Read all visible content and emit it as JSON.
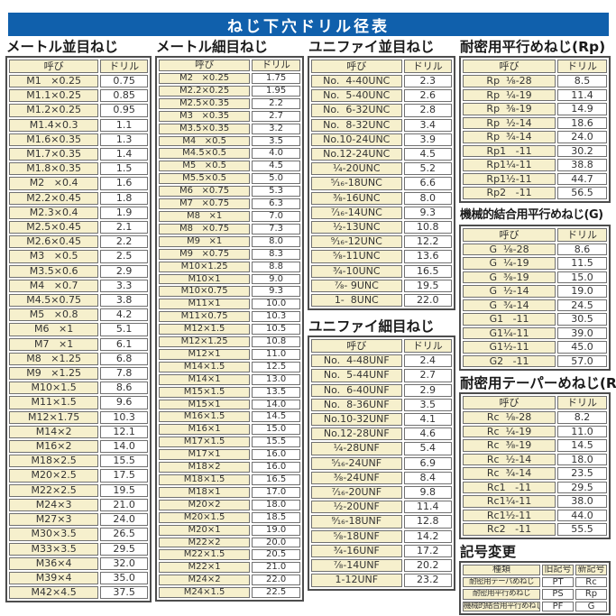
{
  "title": "ねじ下穴ドリル径表",
  "colors": {
    "title_bar_bg": "#1060ac",
    "title_text": "#ffffff",
    "name_cell_bg": "#f6f0cd",
    "value_cell_bg": "#ffffff",
    "border_outer": "#4d4d4d",
    "border_inner": "#707070",
    "body_text": "#333333"
  },
  "sections": {
    "metric_coarse": {
      "heading": "メートル並目ねじ",
      "columns": [
        "呼び",
        "ドリル"
      ],
      "rows": [
        [
          "M1   ×0.25",
          "0.75"
        ],
        [
          "M1.1×0.25",
          "0.85"
        ],
        [
          "M1.2×0.25",
          "0.95"
        ],
        [
          "M1.4×0.3",
          "1.1"
        ],
        [
          "M1.6×0.35",
          "1.3"
        ],
        [
          "M1.7×0.35",
          "1.4"
        ],
        [
          "M1.8×0.35",
          "1.5"
        ],
        [
          "M2   ×0.4",
          "1.6"
        ],
        [
          "M2.2×0.45",
          "1.8"
        ],
        [
          "M2.3×0.4",
          "1.9"
        ],
        [
          "M2.5×0.45",
          "2.1"
        ],
        [
          "M2.6×0.45",
          "2.2"
        ],
        [
          "M3   ×0.5",
          "2.5"
        ],
        [
          "M3.5×0.6",
          "2.9"
        ],
        [
          "M4   ×0.7",
          "3.3"
        ],
        [
          "M4.5×0.75",
          "3.8"
        ],
        [
          "M5   ×0.8",
          "4.2"
        ],
        [
          "M6   ×1",
          "5.1"
        ],
        [
          "M7   ×1",
          "6.1"
        ],
        [
          "M8   ×1.25",
          "6.8"
        ],
        [
          "M9   ×1.25",
          "7.8"
        ],
        [
          "M10×1.5",
          "8.6"
        ],
        [
          "M11×1.5",
          "9.6"
        ],
        [
          "M12×1.75",
          "10.3"
        ],
        [
          "M14×2",
          "12.1"
        ],
        [
          "M16×2",
          "14.0"
        ],
        [
          "M18×2.5",
          "15.5"
        ],
        [
          "M20×2.5",
          "17.5"
        ],
        [
          "M22×2.5",
          "19.5"
        ],
        [
          "M24×3",
          "21.0"
        ],
        [
          "M27×3",
          "24.0"
        ],
        [
          "M30×3.5",
          "26.5"
        ],
        [
          "M33×3.5",
          "29.5"
        ],
        [
          "M36×4",
          "32.0"
        ],
        [
          "M39×4",
          "35.0"
        ],
        [
          "M42×4.5",
          "37.5"
        ]
      ]
    },
    "metric_fine": {
      "heading": "メートル細目ねじ",
      "columns": [
        "呼び",
        "ドリル"
      ],
      "rows": [
        [
          "M2   ×0.25",
          "1.75"
        ],
        [
          "M2.2×0.25",
          "1.95"
        ],
        [
          "M2.5×0.35",
          "2.2"
        ],
        [
          "M3   ×0.35",
          "2.7"
        ],
        [
          "M3.5×0.35",
          "3.2"
        ],
        [
          "M4   ×0.5",
          "3.5"
        ],
        [
          "M4.5×0.5",
          "4.0"
        ],
        [
          "M5   ×0.5",
          "4.5"
        ],
        [
          "M5.5×0.5",
          "5.0"
        ],
        [
          "M6   ×0.75",
          "5.3"
        ],
        [
          "M7   ×0.75",
          "6.3"
        ],
        [
          "M8   ×1",
          "7.0"
        ],
        [
          "M8   ×0.75",
          "7.3"
        ],
        [
          "M9   ×1",
          "8.0"
        ],
        [
          "M9   ×0.75",
          "8.3"
        ],
        [
          "M10×1.25",
          "8.8"
        ],
        [
          "M10×1",
          "9.0"
        ],
        [
          "M10×0.75",
          "9.3"
        ],
        [
          "M11×1",
          "10.0"
        ],
        [
          "M11×0.75",
          "10.3"
        ],
        [
          "M12×1.5",
          "10.5"
        ],
        [
          "M12×1.25",
          "10.8"
        ],
        [
          "M12×1",
          "11.0"
        ],
        [
          "M14×1.5",
          "12.5"
        ],
        [
          "M14×1",
          "13.0"
        ],
        [
          "M15×1.5",
          "13.5"
        ],
        [
          "M15×1",
          "14.0"
        ],
        [
          "M16×1.5",
          "14.5"
        ],
        [
          "M16×1",
          "15.0"
        ],
        [
          "M17×1.5",
          "15.5"
        ],
        [
          "M17×1",
          "16.0"
        ],
        [
          "M18×2",
          "16.0"
        ],
        [
          "M18×1.5",
          "16.5"
        ],
        [
          "M18×1",
          "17.0"
        ],
        [
          "M20×2",
          "18.0"
        ],
        [
          "M20×1.5",
          "18.5"
        ],
        [
          "M20×1",
          "19.0"
        ],
        [
          "M22×2",
          "20.0"
        ],
        [
          "M22×1.5",
          "20.5"
        ],
        [
          "M22×1",
          "21.0"
        ],
        [
          "M24×2",
          "22.0"
        ],
        [
          "M24×1.5",
          "22.5"
        ]
      ]
    },
    "unified_coarse": {
      "heading": "ユニファイ並目ねじ",
      "columns": [
        "呼び",
        "ドリル"
      ],
      "rows": [
        [
          "No.  4-40UNC",
          "2.3"
        ],
        [
          "No.  5-40UNC",
          "2.6"
        ],
        [
          "No.  6-32UNC",
          "2.8"
        ],
        [
          "No.  8-32UNC",
          "3.4"
        ],
        [
          "No.10-24UNC",
          "3.9"
        ],
        [
          "No.12-24UNC",
          "4.5"
        ],
        [
          "¹⁄₄-20UNC",
          "5.2"
        ],
        [
          "⁵⁄₁₆-18UNC",
          "6.6"
        ],
        [
          "³⁄₈-16UNC",
          "8.0"
        ],
        [
          "⁷⁄₁₆-14UNC",
          "9.3"
        ],
        [
          "¹⁄₂-13UNC",
          "10.8"
        ],
        [
          "⁹⁄₁₆-12UNC",
          "12.2"
        ],
        [
          "⁵⁄₈-11UNC",
          "13.6"
        ],
        [
          "³⁄₄-10UNC",
          "16.5"
        ],
        [
          "⁷⁄₈- 9UNC",
          "19.5"
        ],
        [
          "1-  8UNC",
          "22.0"
        ]
      ]
    },
    "unified_fine": {
      "heading": "ユニファイ細目ねじ",
      "columns": [
        "呼び",
        "ドリル"
      ],
      "rows": [
        [
          "No.  4-48UNF",
          "2.4"
        ],
        [
          "No.  5-44UNF",
          "2.7"
        ],
        [
          "No.  6-40UNF",
          "2.9"
        ],
        [
          "No.  8-36UNF",
          "3.5"
        ],
        [
          "No.10-32UNF",
          "4.1"
        ],
        [
          "No.12-28UNF",
          "4.6"
        ],
        [
          "¹⁄₄-28UNF",
          "5.4"
        ],
        [
          "⁵⁄₁₆-24UNF",
          "6.9"
        ],
        [
          "³⁄₈-24UNF",
          "8.4"
        ],
        [
          "⁷⁄₁₆-20UNF",
          "9.8"
        ],
        [
          "¹⁄₂-20UNF",
          "11.4"
        ],
        [
          "⁹⁄₁₆-18UNF",
          "12.8"
        ],
        [
          "⁵⁄₈-18UNF",
          "14.2"
        ],
        [
          "³⁄₄-16UNF",
          "17.2"
        ],
        [
          "⁷⁄₈-14UNF",
          "20.2"
        ],
        [
          "1-12UNF",
          "23.2"
        ]
      ]
    },
    "rp_parallel": {
      "heading": "耐密用平行めねじ(Rp)",
      "columns": [
        "呼び",
        "ドリル"
      ],
      "rows": [
        [
          "Rp  ¹⁄₈-28",
          "8.5"
        ],
        [
          "Rp  ¹⁄₄-19",
          "11.4"
        ],
        [
          "Rp  ³⁄₈-19",
          "14.9"
        ],
        [
          "Rp  ¹⁄₂-14",
          "18.6"
        ],
        [
          "Rp  ³⁄₄-14",
          "24.0"
        ],
        [
          "Rp1   -11",
          "30.2"
        ],
        [
          "Rp1¹⁄₄-11",
          "38.8"
        ],
        [
          "Rp1¹⁄₂-11",
          "44.7"
        ],
        [
          "Rp2   -11",
          "56.5"
        ]
      ]
    },
    "g_parallel": {
      "heading": "機械的結合用平行めねじ(G)",
      "columns": [
        "呼び",
        "ドリル"
      ],
      "rows": [
        [
          "G  ¹⁄₈-28",
          "8.6"
        ],
        [
          "G  ¹⁄₄-19",
          "11.5"
        ],
        [
          "G  ³⁄₈-19",
          "15.0"
        ],
        [
          "G  ¹⁄₂-14",
          "19.0"
        ],
        [
          "G  ³⁄₄-14",
          "24.5"
        ],
        [
          "G1   -11",
          "30.5"
        ],
        [
          "G1¹⁄₄-11",
          "39.0"
        ],
        [
          "G1¹⁄₂-11",
          "45.0"
        ],
        [
          "G2   -11",
          "57.0"
        ]
      ]
    },
    "rc_taper": {
      "heading": "耐密用テーパーめねじ(Rc)",
      "columns": [
        "呼び",
        "ドリル"
      ],
      "rows": [
        [
          "Rc  ¹⁄₈-28",
          "8.2"
        ],
        [
          "Rc  ¹⁄₄-19",
          "11.0"
        ],
        [
          "Rc  ³⁄₈-19",
          "14.5"
        ],
        [
          "Rc  ¹⁄₂-14",
          "18.0"
        ],
        [
          "Rc  ³⁄₄-14",
          "23.5"
        ],
        [
          "Rc1   -11",
          "29.5"
        ],
        [
          "Rc1¹⁄₄-11",
          "38.0"
        ],
        [
          "Rc1¹⁄₂-11",
          "44.0"
        ],
        [
          "Rc2   -11",
          "55.5"
        ]
      ]
    },
    "symbol_change": {
      "heading": "記号変更",
      "columns": [
        "種類",
        "旧記号",
        "新記号"
      ],
      "rows": [
        [
          "耐密用テーパめねじ",
          "PT",
          "Rc"
        ],
        [
          "耐密用平行めねじ",
          "PS",
          "Rp"
        ],
        [
          "機械的結合用平行めねじ",
          "PF",
          "G"
        ]
      ]
    }
  }
}
